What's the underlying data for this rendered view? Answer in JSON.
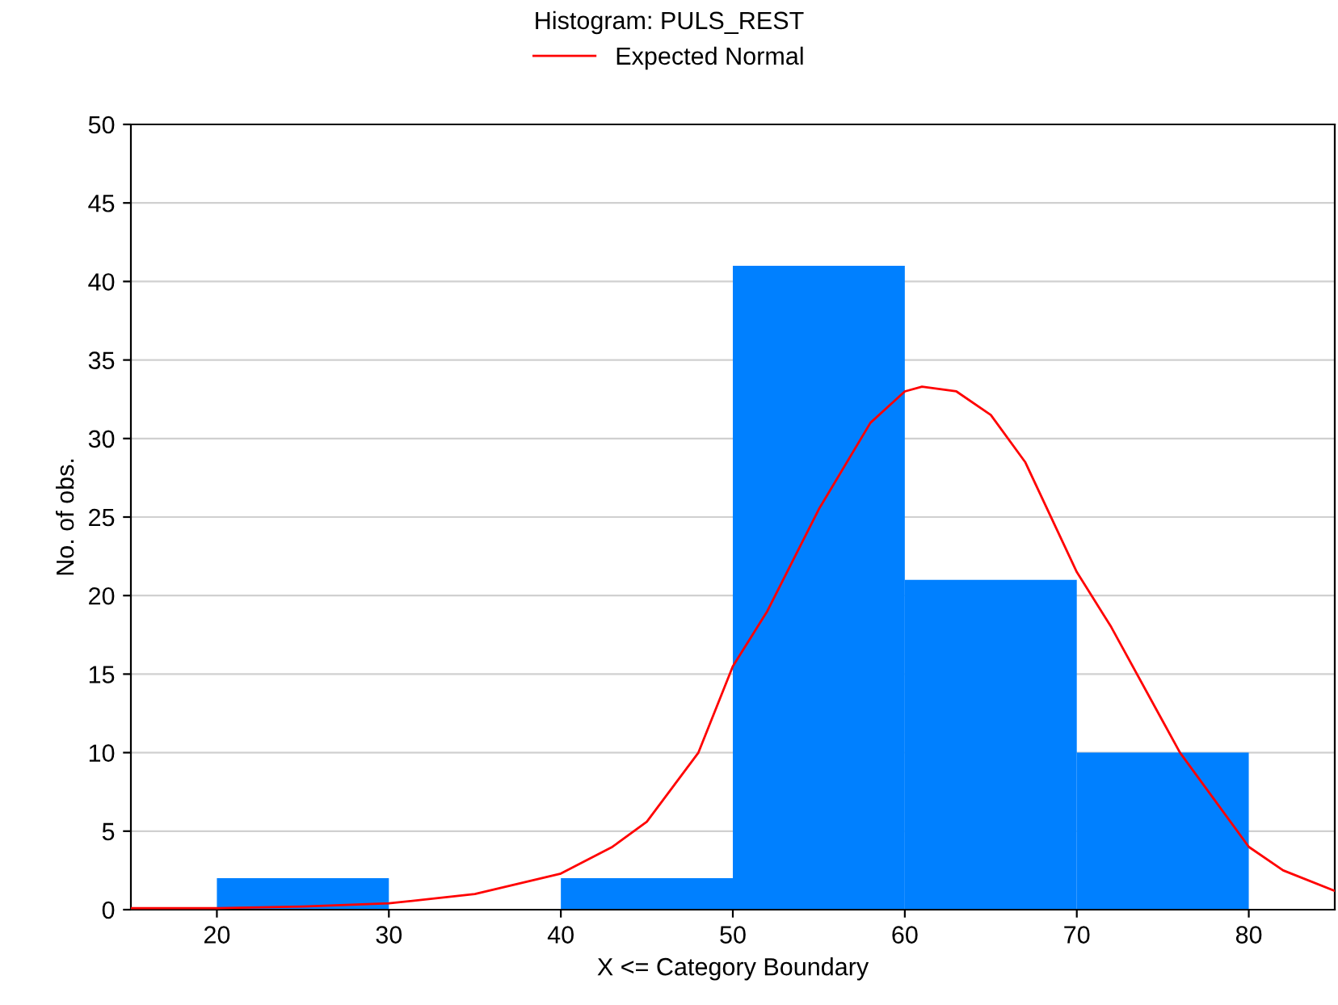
{
  "chart_data": {
    "type": "histogram",
    "title": "Histogram: PULS_REST",
    "xlabel": "X <= Category Boundary",
    "ylabel": "No. of obs.",
    "bins": [
      20,
      30,
      40,
      50,
      60,
      70,
      80
    ],
    "values": [
      2,
      0,
      2,
      41,
      21,
      10
    ],
    "color": "#0080ff",
    "series": [
      {
        "type": "line",
        "name": "Expected Normal",
        "color": "#ff0000",
        "x": [
          15,
          20,
          25,
          30,
          35,
          40,
          43,
          45,
          48,
          50,
          52,
          55,
          58,
          60,
          61,
          63,
          65,
          67,
          70,
          72,
          75,
          76,
          78,
          80,
          82,
          85
        ],
        "values": [
          0.1,
          0.1,
          0.2,
          0.4,
          1.0,
          2.3,
          4,
          5.6,
          10,
          15.5,
          19,
          25.5,
          31,
          33,
          33.3,
          33,
          31.5,
          28.5,
          21.5,
          18,
          12,
          10,
          7,
          4,
          2.5,
          1.2
        ]
      }
    ],
    "xlim": [
      15,
      85
    ],
    "xticks": [
      20,
      30,
      40,
      50,
      60,
      70,
      80
    ],
    "ylim": [
      0,
      50
    ],
    "yticks": [
      0,
      5,
      10,
      15,
      20,
      25,
      30,
      35,
      40,
      45,
      50
    ],
    "grid": "y",
    "legend": "top",
    "line_style": "solid",
    "marker": "none"
  }
}
